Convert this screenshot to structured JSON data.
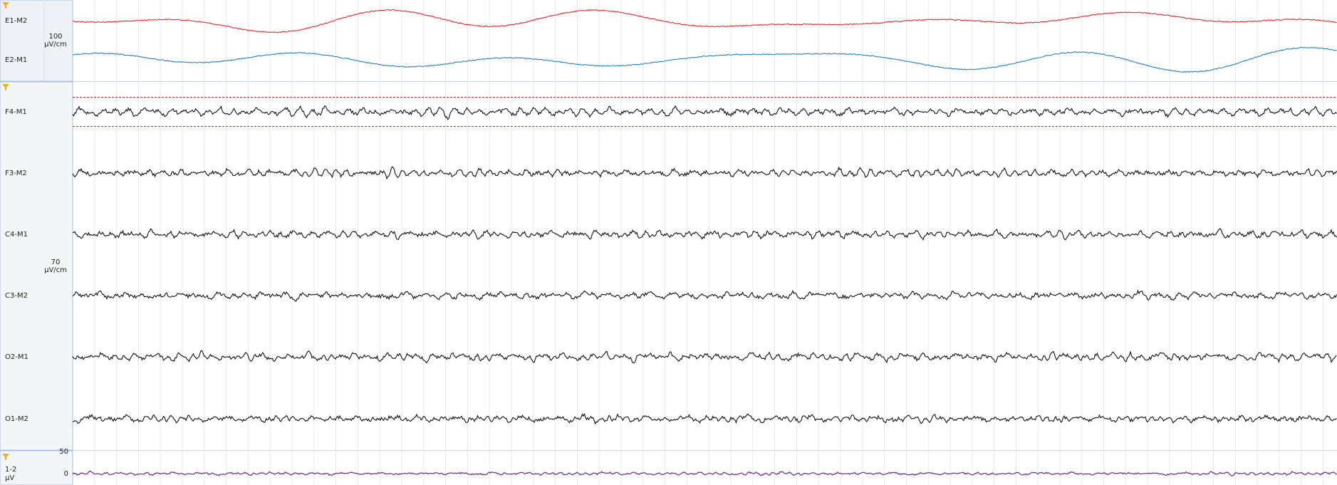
{
  "panels": [
    {
      "scale": {
        "value": "100",
        "unit": "µV/cm"
      },
      "channels": [
        {
          "label": "E1-M2",
          "color": "#e3262c"
        },
        {
          "label": "E2-M1",
          "color": "#2a7fc1"
        }
      ]
    },
    {
      "scale": {
        "value": "70",
        "unit": "µV/cm"
      },
      "channels": [
        {
          "label": "F4-M1",
          "color": "#111111"
        },
        {
          "label": "F3-M2",
          "color": "#111111"
        },
        {
          "label": "C4-M1",
          "color": "#111111"
        },
        {
          "label": "C3-M2",
          "color": "#111111"
        },
        {
          "label": "O2-M1",
          "color": "#111111"
        },
        {
          "label": "O1-M2",
          "color": "#111111"
        }
      ]
    }
  ],
  "bottom": {
    "label": "1-2",
    "unit": "µV",
    "ticks": [
      "50",
      "0"
    ],
    "color": "#6a2a8e"
  }
}
